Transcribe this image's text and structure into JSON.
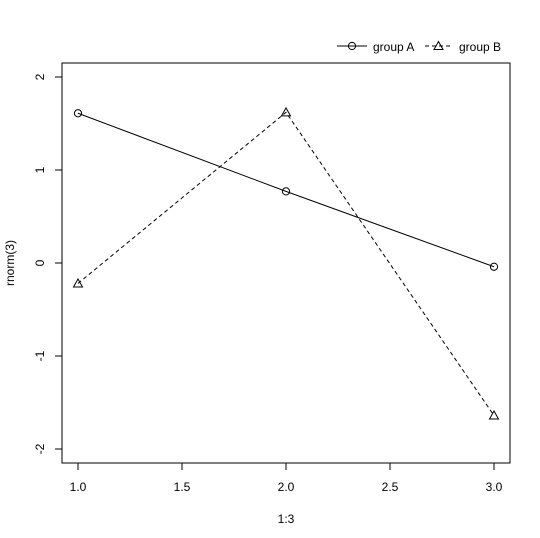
{
  "chart_data": {
    "type": "line",
    "xlabel": "1:3",
    "ylabel": "rnorm(3)",
    "xlim": [
      1.0,
      3.0
    ],
    "ylim": [
      -2,
      2
    ],
    "x": [
      1.0,
      2.0,
      3.0
    ],
    "x_ticks": [
      "1.0",
      "1.5",
      "2.0",
      "2.5",
      "3.0"
    ],
    "y_ticks": [
      "-2",
      "-1",
      "0",
      "1",
      "2"
    ],
    "grid": false,
    "legend_position": "top-right, outside plot",
    "series": [
      {
        "name": "group A",
        "marker": "circle",
        "line": "solid",
        "values": [
          1.61,
          0.77,
          -0.04
        ]
      },
      {
        "name": "group B",
        "marker": "triangle",
        "line": "dashed",
        "values": [
          -0.22,
          1.62,
          -1.64
        ]
      }
    ]
  }
}
